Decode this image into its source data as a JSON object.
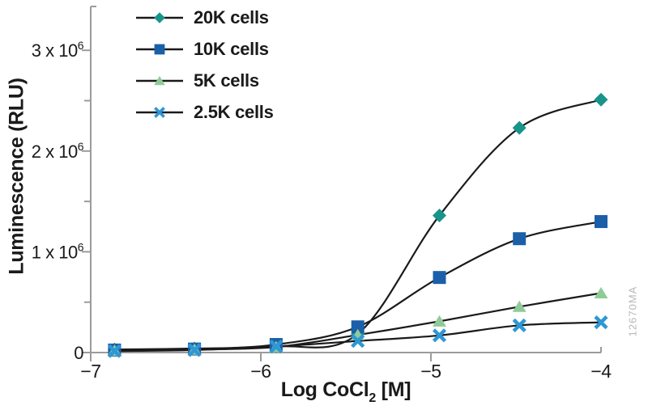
{
  "figure": {
    "watermark": "12670MA"
  },
  "chart_data": {
    "type": "line",
    "title": "",
    "xlabel": {
      "pre": "Log CoCl",
      "sub": "2",
      "post": " [M]"
    },
    "xlabel_text": "Log CoCl2 [M]",
    "ylabel": "Luminescence (RLU)",
    "xlim": [
      -7,
      -4
    ],
    "ylim": [
      0,
      3435000
    ],
    "grid": false,
    "legend_position": "top-left",
    "x_ticks": [
      {
        "v": -7,
        "label": "−7"
      },
      {
        "v": -6,
        "label": "−6"
      },
      {
        "v": -5,
        "label": "−5"
      },
      {
        "v": -4,
        "label": "−4"
      }
    ],
    "y_ticks": [
      {
        "v": 0,
        "label": "0"
      },
      {
        "v": 1000000,
        "label": "1 x 10^6"
      },
      {
        "v": 2000000,
        "label": "2 x 10^6"
      },
      {
        "v": 3000000,
        "label": "3 x 10^6"
      }
    ],
    "y_minor_ticks": [
      500000,
      1500000,
      2500000
    ],
    "x": [
      -6.86,
      -6.39,
      -5.91,
      -5.43,
      -4.95,
      -4.48,
      -4.0
    ],
    "series": [
      {
        "name": "20K cells",
        "marker": "diamond",
        "color": "#17948c",
        "values": [
          30000,
          40000,
          60000,
          185000,
          1360000,
          2230000,
          2510000
        ]
      },
      {
        "name": "10K cells",
        "marker": "square",
        "color": "#1b5fa8",
        "values": [
          25000,
          35000,
          80000,
          255000,
          745000,
          1130000,
          1300000
        ]
      },
      {
        "name": "5K cells",
        "marker": "triangle",
        "color": "#8fcb97",
        "values": [
          20000,
          30000,
          55000,
          175000,
          310000,
          455000,
          590000
        ]
      },
      {
        "name": "2.5K cells",
        "marker": "x",
        "color": "#2e97d5",
        "values": [
          15000,
          25000,
          60000,
          115000,
          170000,
          270000,
          300000
        ]
      }
    ],
    "line_color": "#1a1a1a",
    "axis_color": "#9b9b9b"
  }
}
